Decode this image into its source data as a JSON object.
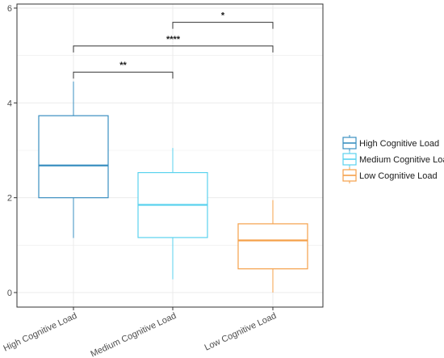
{
  "chart_data": {
    "type": "boxplot",
    "title": "",
    "xlabel": "",
    "ylabel": "",
    "ylim": [
      0,
      6
    ],
    "yticks": [
      0,
      2,
      4,
      6
    ],
    "grid": true,
    "legend_position": "right",
    "categories": [
      "High Cognitive Load",
      "Medium Cognitive Load",
      "Low Cognitive Load"
    ],
    "series": [
      {
        "name": "High Cognitive Load",
        "color": "#3a8fc0",
        "stats": {
          "min": 1.15,
          "q1": 2.0,
          "median": 2.68,
          "q3": 3.73,
          "max": 4.45
        }
      },
      {
        "name": "Medium Cognitive Load",
        "color": "#5ad2ee",
        "stats": {
          "min": 0.28,
          "q1": 1.16,
          "median": 1.85,
          "q3": 2.53,
          "max": 3.05
        }
      },
      {
        "name": "Low Cognitive Load",
        "color": "#f5a04a",
        "stats": {
          "min": 0.0,
          "q1": 0.5,
          "median": 1.1,
          "q3": 1.45,
          "max": 1.95
        }
      }
    ],
    "significance": [
      {
        "from": 1,
        "to": 2,
        "y": 5.7,
        "label": "*"
      },
      {
        "from": 0,
        "to": 2,
        "y": 5.2,
        "label": "****"
      },
      {
        "from": 0,
        "to": 1,
        "y": 4.65,
        "label": "**"
      }
    ]
  }
}
